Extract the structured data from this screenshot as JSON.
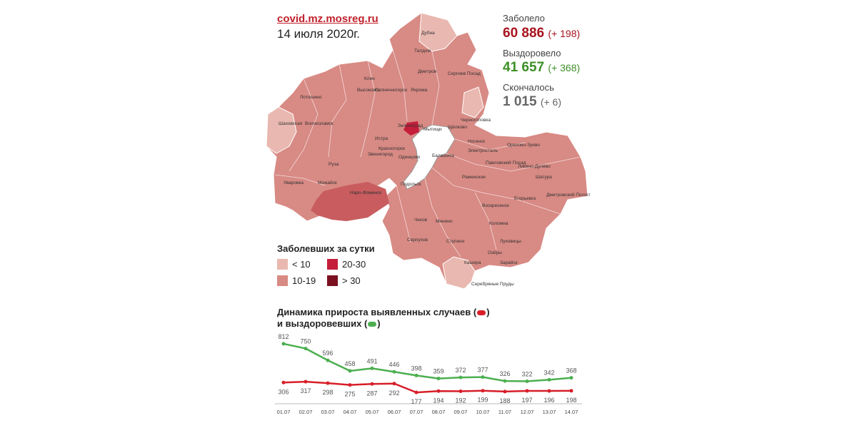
{
  "header": {
    "source": "covid.mz.mosreg.ru",
    "date": "14 июля 2020г."
  },
  "stats": {
    "infected_label": "Заболело",
    "infected_value": "60 886",
    "infected_delta": "(+ 198)",
    "recovered_label": "Выздоровело",
    "recovered_value": "41 657",
    "recovered_delta": "(+ 368)",
    "died_label": "Скончалось",
    "died_value": "1 015",
    "died_delta": "(+ 6)"
  },
  "legend": {
    "title": "Заболевших за сутки",
    "items": [
      {
        "label": "< 10",
        "color": "#e9b8b0"
      },
      {
        "label": "10-19",
        "color": "#d88a84"
      },
      {
        "label": "20-30",
        "color": "#c41e3a"
      },
      {
        "label": "> 30",
        "color": "#7a1020"
      }
    ]
  },
  "map": {
    "labels": [
      "Дубна",
      "Талдом",
      "Дмитров",
      "Клин",
      "Сергиев Посад",
      "Высоковск",
      "Солнечногорск",
      "Яхрома",
      "Лотошино",
      "Шаховская",
      "Волоколамск",
      "Зеленоград",
      "Мытищи",
      "Щёлково",
      "Истра",
      "Красногорск",
      "Ногинск",
      "Черноголовка",
      "Орехово-Зуево",
      "Электросталь",
      "Руза",
      "Звенигород",
      "Одинцово",
      "Балашиха",
      "Павловский Посад",
      "Ликино-Дулёво",
      "Шатура",
      "Уваровка",
      "Можайск",
      "Наро-Фоминск",
      "Раменское",
      "Подольск",
      "Воскресенск",
      "Егорьевск",
      "Дмитровский Погост",
      "Чехов",
      "Минино",
      "Коломна",
      "Серпухов",
      "Луховицы",
      "Ступино",
      "Озёры",
      "Зарайск",
      "Кашира",
      "Серебряные Пруды"
    ],
    "colors": {
      "light": "#e9b8b0",
      "medium": "#d88a84",
      "high": "#c41e3a",
      "very_high": "#7a1020",
      "moscow": "#ffffff"
    }
  },
  "chart": {
    "title_line1": "Динамика прироста выявленных случаев (",
    "title_line1_end": ")",
    "title_line2": "и выздоровевших (",
    "title_line2_end": ")"
  },
  "chart_data": {
    "type": "line",
    "categories": [
      "01.07",
      "02.07",
      "03.07",
      "04.07",
      "05.07",
      "06.07",
      "07.07",
      "08.07",
      "09.07",
      "10.07",
      "11.07",
      "12.07",
      "13.07",
      "14.07"
    ],
    "series": [
      {
        "name": "выздоровевших",
        "color": "#4caf50",
        "values": [
          812,
          750,
          596,
          458,
          491,
          446,
          398,
          359,
          372,
          377,
          326,
          322,
          342,
          368
        ]
      },
      {
        "name": "выявленных случаев",
        "color": "#d81e28",
        "values": [
          306,
          317,
          298,
          275,
          287,
          292,
          177,
          194,
          192,
          199,
          188,
          197,
          196,
          198
        ]
      }
    ]
  }
}
